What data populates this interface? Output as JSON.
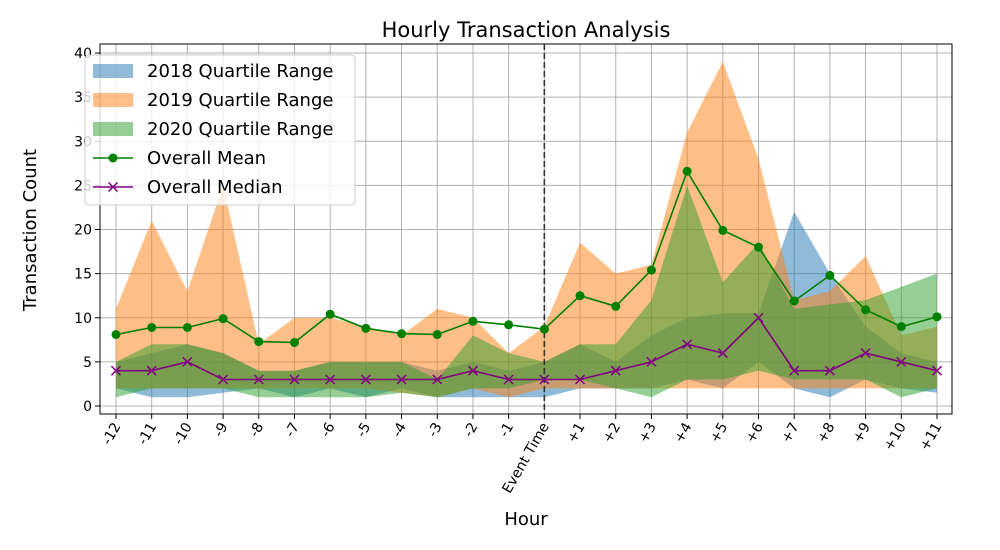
{
  "chart_data": {
    "type": "area",
    "title": "Hourly Transaction Analysis",
    "xlabel": "Hour",
    "ylabel": "Transaction Count",
    "categories": [
      "-12",
      "-11",
      "-10",
      "-9",
      "-8",
      "-7",
      "-6",
      "-5",
      "-4",
      "-3",
      "-2",
      "-1",
      "Event Time",
      "+1",
      "+2",
      "+3",
      "+4",
      "+5",
      "+6",
      "+7",
      "+8",
      "+9",
      "+10",
      "+11"
    ],
    "ylim": [
      0,
      40
    ],
    "yticks": [
      0,
      5,
      10,
      15,
      20,
      25,
      30,
      35,
      40
    ],
    "grid": true,
    "legend_position": "top-left",
    "event_marker": "Event Time",
    "bands": [
      {
        "name": "2018 Quartile Range",
        "color": "#1f77b4",
        "opacity": 0.5,
        "low": [
          2,
          1,
          1,
          1.5,
          2,
          1,
          2,
          1,
          2,
          1,
          1,
          1,
          1,
          2,
          2,
          2,
          3,
          2,
          5,
          2,
          1,
          3,
          2,
          1.5
        ],
        "high": [
          5,
          6,
          7,
          6,
          4,
          4,
          5,
          5,
          5,
          4,
          5,
          4,
          5,
          7,
          5,
          8,
          10,
          10.5,
          10.5,
          22,
          15,
          9,
          6,
          5
        ]
      },
      {
        "name": "2019 Quartile Range",
        "color": "#ff7f0e",
        "opacity": 0.5,
        "low": [
          2,
          2,
          2,
          2,
          2,
          2,
          2,
          2,
          1.5,
          1,
          2,
          1,
          2,
          2,
          2,
          2,
          2,
          2,
          2,
          2,
          2,
          2,
          2,
          2
        ],
        "high": [
          11,
          21,
          13,
          25,
          7,
          10,
          10,
          9,
          8,
          11,
          10,
          6,
          9,
          18.5,
          15,
          16,
          31,
          39,
          28,
          12,
          13,
          17,
          8,
          9
        ]
      },
      {
        "name": "2020 Quartile Range",
        "color": "#2ca02c",
        "opacity": 0.5,
        "low": [
          1,
          2,
          2,
          2,
          1,
          1,
          1,
          1,
          1.5,
          1,
          2,
          2,
          3,
          3,
          2,
          1,
          3,
          3,
          4,
          3,
          3,
          3,
          1,
          2
        ],
        "high": [
          5,
          7,
          7,
          6,
          4,
          4,
          5,
          5,
          5,
          3,
          8,
          6,
          5,
          7,
          7,
          12,
          25,
          14,
          18.5,
          11,
          11.5,
          12,
          13.5,
          15
        ]
      }
    ],
    "series": [
      {
        "name": "Overall Mean",
        "color": "#008000",
        "marker": "circle",
        "values": [
          8.1,
          8.9,
          8.9,
          9.9,
          7.3,
          7.2,
          10.4,
          8.8,
          8.2,
          8.1,
          9.6,
          9.2,
          8.7,
          12.5,
          11.3,
          15.4,
          26.6,
          19.9,
          18.0,
          11.9,
          14.8,
          10.9,
          9.0,
          10.1
        ]
      },
      {
        "name": "Overall Median",
        "color": "#800080",
        "marker": "x",
        "values": [
          4,
          4,
          5,
          3,
          3,
          3,
          3,
          3,
          3,
          3,
          4,
          3,
          3,
          3,
          4,
          5,
          7,
          6,
          10,
          4,
          4,
          6,
          5,
          4
        ]
      }
    ]
  }
}
